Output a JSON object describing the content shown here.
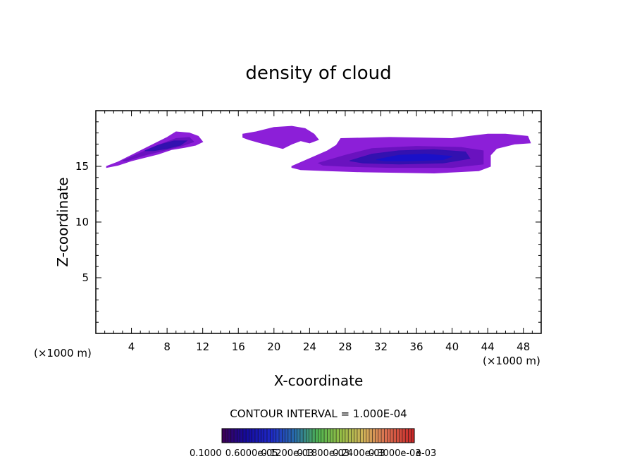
{
  "chart_data": {
    "type": "heatmap",
    "title": "density of cloud",
    "xlabel": "X-coordinate",
    "ylabel": "Z-coordinate",
    "x_unit_left": "(×1000 m)",
    "x_unit_right": "(×1000 m)",
    "xlim": [
      0,
      50
    ],
    "ylim": [
      0,
      20
    ],
    "x_ticks": [
      4,
      8,
      12,
      16,
      20,
      24,
      28,
      32,
      36,
      40,
      44,
      48
    ],
    "y_ticks": [
      5,
      10,
      15
    ],
    "contour_interval_label": "CONTOUR INTERVAL = 1.000E-04",
    "colorbar_labels": [
      "0.1000",
      "0.6000e-05",
      "0.1200e-03",
      "0.1800e-03",
      "0.2400e-03",
      "0.3000e-03"
    ],
    "colorbar_tail_label": "e-03",
    "colors": {
      "outer": "#8c1fd8",
      "mid": "#6a12bf",
      "inner": "#3311b0",
      "core": "#1a10c8"
    },
    "cloud_regions": [
      {
        "name": "left-cloud",
        "outer": [
          [
            1.2,
            15.0
          ],
          [
            2.5,
            15.4
          ],
          [
            4,
            16.0
          ],
          [
            5.5,
            16.6
          ],
          [
            7,
            17.2
          ],
          [
            8,
            17.6
          ],
          [
            9,
            18.1
          ],
          [
            10.5,
            18.0
          ],
          [
            11.5,
            17.7
          ],
          [
            12,
            17.2
          ],
          [
            11.2,
            16.9
          ],
          [
            10,
            16.7
          ],
          [
            8.5,
            16.5
          ],
          [
            7,
            16.1
          ],
          [
            5.5,
            15.8
          ],
          [
            4,
            15.5
          ],
          [
            2.5,
            15.1
          ],
          [
            1.2,
            14.9
          ]
        ],
        "mid": [
          [
            3,
            15.5
          ],
          [
            5,
            16.2
          ],
          [
            7,
            16.9
          ],
          [
            9,
            17.5
          ],
          [
            10.5,
            17.6
          ],
          [
            11,
            17.2
          ],
          [
            9.5,
            16.8
          ],
          [
            7.5,
            16.4
          ],
          [
            5.5,
            16.0
          ],
          [
            3.5,
            15.5
          ]
        ],
        "inner": [
          [
            5.5,
            16.4
          ],
          [
            7,
            16.9
          ],
          [
            8.8,
            17.3
          ],
          [
            10.2,
            17.3
          ],
          [
            9.5,
            16.9
          ],
          [
            8,
            16.6
          ],
          [
            6.5,
            16.4
          ]
        ]
      },
      {
        "name": "middle-cloud",
        "outer": [
          [
            16.5,
            17.9
          ],
          [
            18,
            18.1
          ],
          [
            20,
            18.5
          ],
          [
            22,
            18.6
          ],
          [
            23.5,
            18.4
          ],
          [
            24.5,
            17.9
          ],
          [
            25,
            17.4
          ],
          [
            24,
            17.1
          ],
          [
            23,
            17.3
          ],
          [
            22,
            17.0
          ],
          [
            21,
            16.6
          ],
          [
            19.5,
            16.9
          ],
          [
            18.5,
            17.1
          ],
          [
            17.2,
            17.4
          ],
          [
            16.5,
            17.6
          ]
        ],
        "mid": [],
        "inner": []
      },
      {
        "name": "right-cloud",
        "outer": [
          [
            22,
            15.0
          ],
          [
            24,
            15.7
          ],
          [
            26,
            16.4
          ],
          [
            27,
            16.9
          ],
          [
            27.5,
            17.5
          ],
          [
            33,
            17.6
          ],
          [
            40,
            17.5
          ],
          [
            42,
            17.7
          ],
          [
            44,
            17.9
          ],
          [
            46,
            17.9
          ],
          [
            48.5,
            17.7
          ],
          [
            48.8,
            17.1
          ],
          [
            47,
            17.0
          ],
          [
            45,
            16.6
          ],
          [
            44.3,
            16.0
          ],
          [
            44.3,
            15.0
          ],
          [
            43,
            14.6
          ],
          [
            38,
            14.4
          ],
          [
            30,
            14.5
          ],
          [
            26,
            14.6
          ],
          [
            23,
            14.7
          ],
          [
            22,
            14.9
          ]
        ],
        "mid": [
          [
            25,
            15.3
          ],
          [
            28,
            16.0
          ],
          [
            31,
            16.6
          ],
          [
            36,
            16.8
          ],
          [
            41,
            16.7
          ],
          [
            43.5,
            16.4
          ],
          [
            43.5,
            15.2
          ],
          [
            40,
            14.9
          ],
          [
            33,
            14.9
          ],
          [
            28,
            15.0
          ],
          [
            25.5,
            15.1
          ]
        ],
        "inner": [
          [
            28.5,
            15.5
          ],
          [
            31,
            16.1
          ],
          [
            34,
            16.4
          ],
          [
            38,
            16.5
          ],
          [
            41.5,
            16.3
          ],
          [
            42,
            15.7
          ],
          [
            39,
            15.3
          ],
          [
            34,
            15.2
          ],
          [
            30,
            15.3
          ]
        ],
        "core": [
          [
            31.5,
            15.6
          ],
          [
            34,
            16.0
          ],
          [
            37,
            16.1
          ],
          [
            40,
            15.9
          ],
          [
            39,
            15.6
          ],
          [
            35,
            15.5
          ],
          [
            32.5,
            15.5
          ]
        ]
      }
    ]
  }
}
